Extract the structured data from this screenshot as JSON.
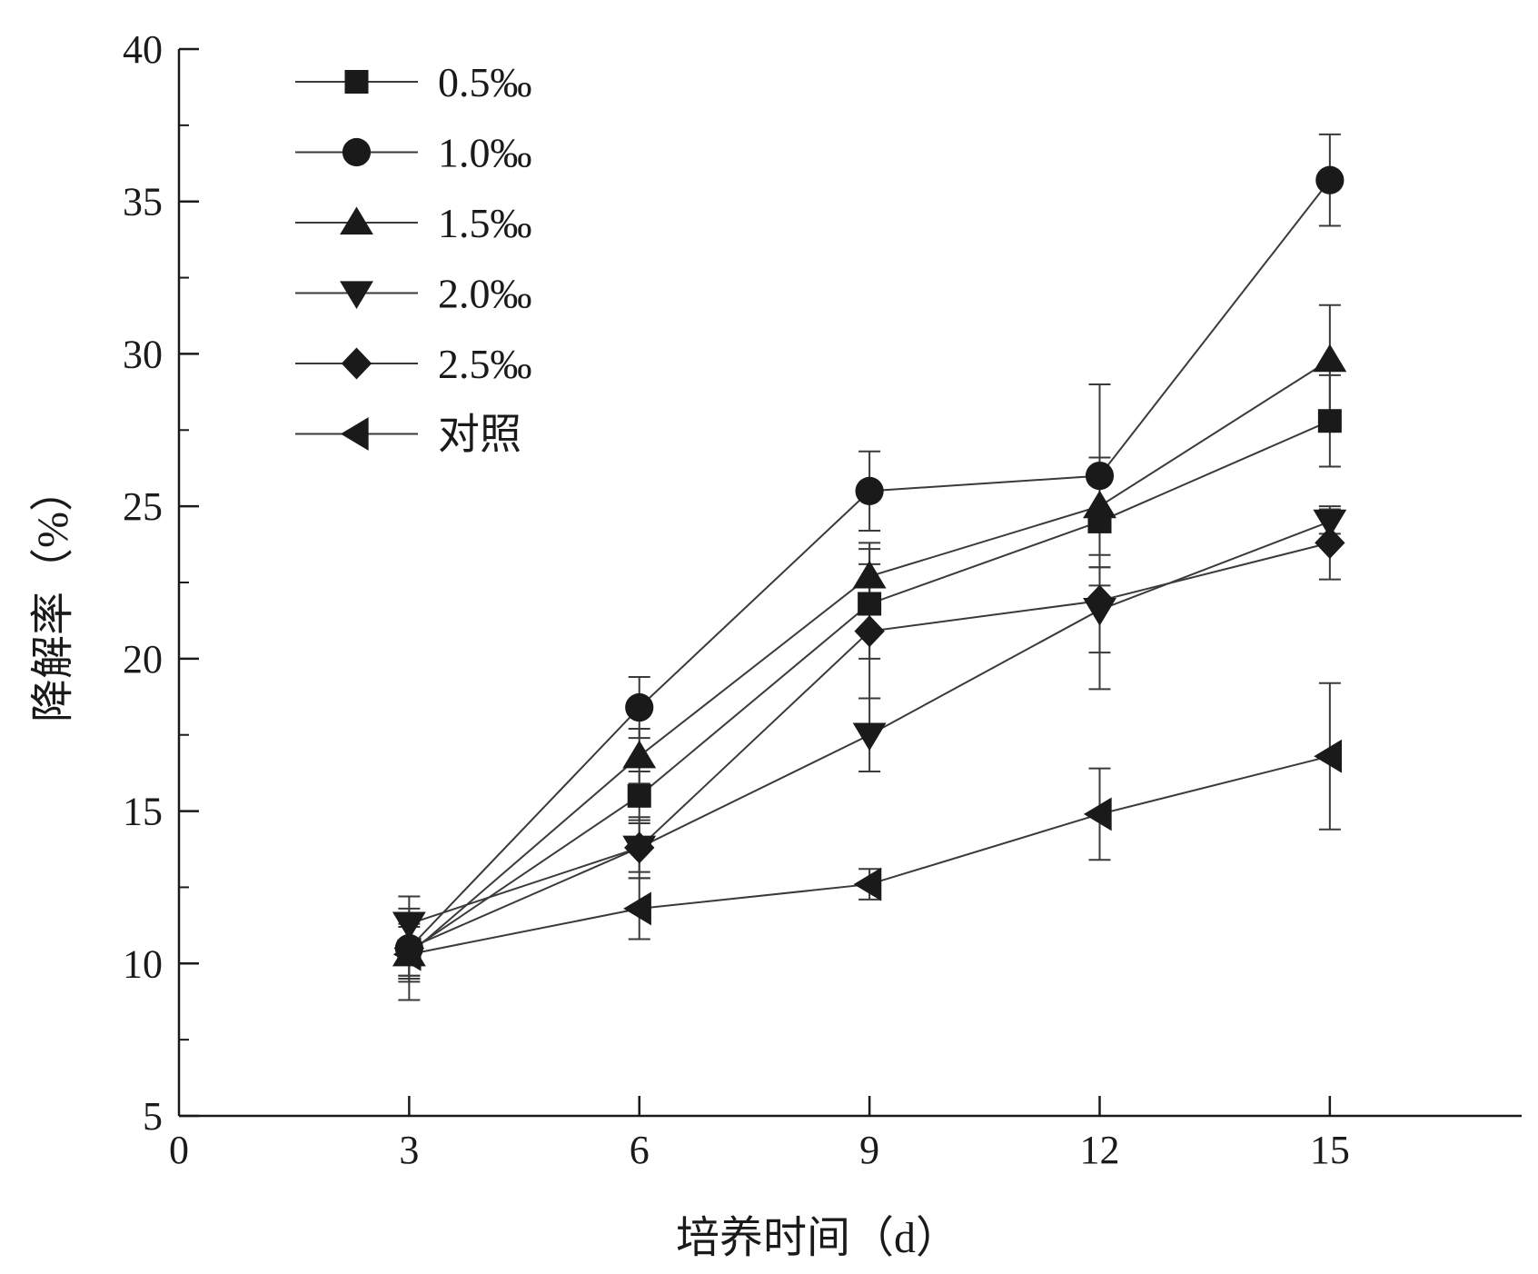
{
  "chart_data": {
    "type": "line",
    "xlabel": "培养时间（d）",
    "ylabel": "降解率（%）",
    "xlim": [
      0,
      17.5
    ],
    "ylim": [
      5,
      40
    ],
    "xticks": [
      0,
      3,
      6,
      9,
      12,
      15
    ],
    "yticks": [
      5,
      10,
      15,
      20,
      25,
      30,
      35,
      40
    ],
    "grid": false,
    "legend_position": "top-left",
    "x": [
      3,
      6,
      9,
      12,
      15
    ],
    "series": [
      {
        "name": "0.5‰",
        "marker": "square",
        "values": [
          10.4,
          15.5,
          21.8,
          24.5,
          27.8
        ],
        "errors": [
          0.9,
          0.8,
          1.8,
          2.1,
          1.5
        ]
      },
      {
        "name": "1.0‰",
        "marker": "circle",
        "values": [
          10.5,
          18.4,
          25.5,
          26.0,
          35.7
        ],
        "errors": [
          0.9,
          1.0,
          1.3,
          3.0,
          1.5
        ]
      },
      {
        "name": "1.5‰",
        "marker": "triangle-up",
        "values": [
          10.3,
          16.8,
          22.7,
          25.0,
          29.8
        ],
        "errors": [
          0.9,
          0.9,
          1.1,
          1.6,
          1.8
        ]
      },
      {
        "name": "2.0‰",
        "marker": "triangle-down",
        "values": [
          11.3,
          13.8,
          17.5,
          21.6,
          24.5
        ],
        "errors": [
          0.9,
          1.0,
          1.2,
          1.4,
          0.4
        ]
      },
      {
        "name": "2.5‰",
        "marker": "diamond",
        "values": [
          10.5,
          13.8,
          20.9,
          21.9,
          23.8
        ],
        "errors": [
          0.9,
          0.8,
          2.2,
          2.9,
          1.2
        ]
      },
      {
        "name": "对照",
        "marker": "triangle-left",
        "values": [
          10.3,
          11.8,
          12.6,
          14.9,
          16.8
        ],
        "errors": [
          1.5,
          1.0,
          0.5,
          1.5,
          2.4
        ]
      }
    ]
  }
}
